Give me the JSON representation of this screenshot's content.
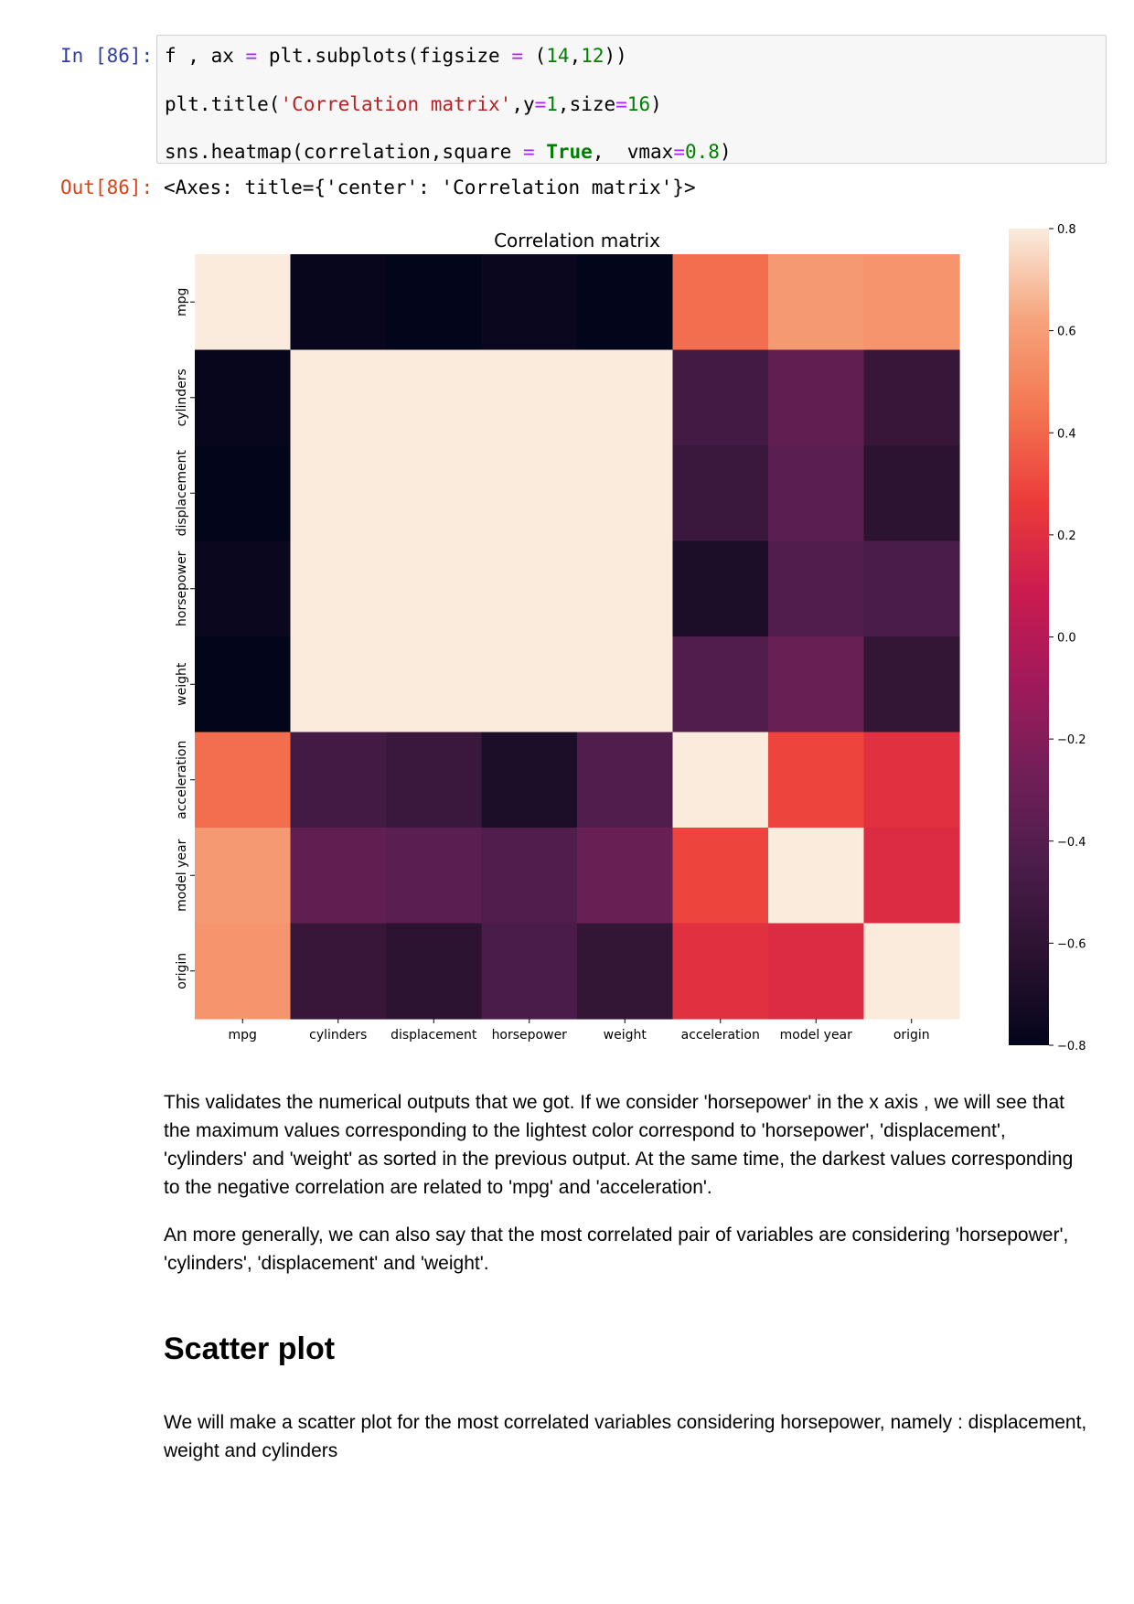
{
  "input_cell": {
    "prompt": "In [86]:",
    "line1": {
      "a": "f , ax ",
      "op": "=",
      "b": " plt.subplots(figsize ",
      "op2": "=",
      "c": " (",
      "n1": "14",
      "d": ",",
      "n2": "12",
      "e": "))"
    },
    "line2": {
      "a": "plt.title(",
      "s": "'Correlation matrix'",
      "b": ",y",
      "op": "=",
      "n1": "1",
      "c": ",size",
      "op2": "=",
      "n2": "16",
      "d": ")"
    },
    "line3": {
      "a": "sns.heatmap(correlation,square ",
      "op": "=",
      "b": " ",
      "kw": "True",
      "c": ",  vmax",
      "op2": "=",
      "n": "0.8",
      "d": ")"
    }
  },
  "output_cell": {
    "prompt": "Out[86]:",
    "text": "<Axes: title={'center': 'Correlation matrix'}>"
  },
  "chart_data": {
    "type": "heatmap",
    "title": "Correlation matrix",
    "variables": [
      "mpg",
      "cylinders",
      "displacement",
      "horsepower",
      "weight",
      "acceleration",
      "model year",
      "origin"
    ],
    "matrix": [
      [
        1.0,
        -0.78,
        -0.8,
        -0.77,
        -0.83,
        0.42,
        0.58,
        0.56
      ],
      [
        -0.78,
        1.0,
        0.95,
        0.84,
        0.9,
        -0.5,
        -0.35,
        -0.56
      ],
      [
        -0.8,
        0.95,
        1.0,
        0.9,
        0.93,
        -0.54,
        -0.37,
        -0.61
      ],
      [
        -0.77,
        0.84,
        0.9,
        1.0,
        0.86,
        -0.69,
        -0.42,
        -0.46
      ],
      [
        -0.83,
        0.9,
        0.93,
        0.86,
        1.0,
        -0.42,
        -0.31,
        -0.58
      ],
      [
        0.42,
        -0.5,
        -0.54,
        -0.69,
        -0.42,
        1.0,
        0.29,
        0.21
      ],
      [
        0.58,
        -0.35,
        -0.37,
        -0.42,
        -0.31,
        0.29,
        1.0,
        0.18
      ],
      [
        0.56,
        -0.56,
        -0.61,
        -0.46,
        -0.58,
        0.21,
        0.18,
        1.0
      ]
    ],
    "vmin": -0.8,
    "vmax": 0.8,
    "colorbar_ticks": [
      "0.8",
      "0.6",
      "0.4",
      "0.2",
      "0.0",
      "−0.2",
      "−0.4",
      "−0.6",
      "−0.8"
    ],
    "colorbar_tick_values": [
      0.8,
      0.6,
      0.4,
      0.2,
      0.0,
      -0.2,
      -0.4,
      -0.6,
      -0.8
    ],
    "colormap": "rocket",
    "colormap_stops": [
      "#03051a",
      "#2b1230",
      "#4c1d4b",
      "#711f57",
      "#a11a5b",
      "#cb1b4f",
      "#ec3c3a",
      "#f37651",
      "#f6a47c",
      "#faebdd"
    ]
  },
  "paragraphs": {
    "p1": "This validates the numerical outputs that we got. If we consider 'horsepower' in the x axis , we will see that the maximum values corresponding to the lightest color correspond to 'horsepower', 'displacement', 'cylinders' and 'weight' as sorted in the previous output. At the same time, the darkest values corresponding to the negative correlation are related to 'mpg' and 'acceleration'.",
    "p2": "An more generally, we can also say that the most correlated pair of variables are considering 'horsepower', 'cylinders', 'displacement' and 'weight'.",
    "heading": "Scatter plot",
    "p3": "We will make a scatter plot for the most correlated variables considering horsepower, namely : displacement, weight and cylinders"
  }
}
